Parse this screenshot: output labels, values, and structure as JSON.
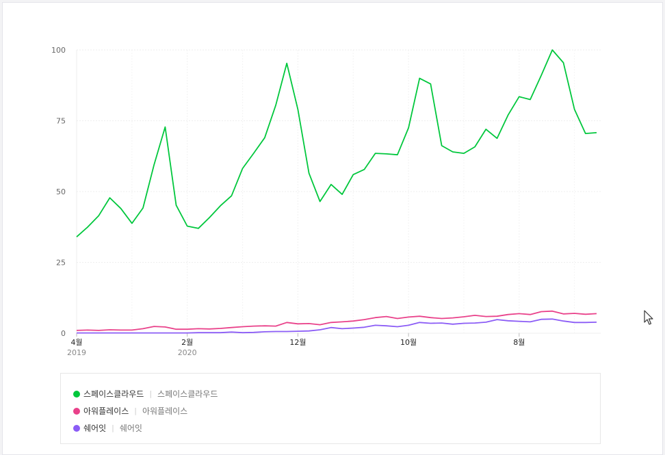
{
  "chart_data": {
    "type": "line",
    "title": "",
    "xlabel": "",
    "ylabel": "",
    "ylim": [
      0,
      100
    ],
    "yticks": [
      0,
      25,
      50,
      75,
      100
    ],
    "ytick_labels": [
      "0",
      "25",
      "50",
      "75",
      "100"
    ],
    "grid": true,
    "legend_position": "bottom",
    "xticks": [
      {
        "index": 0,
        "label": "4월",
        "sub": "2019"
      },
      {
        "index": 10,
        "label": "2월",
        "sub": "2020"
      },
      {
        "index": 20,
        "label": "12월",
        "sub": ""
      },
      {
        "index": 30,
        "label": "10월",
        "sub": ""
      },
      {
        "index": 40,
        "label": "8월",
        "sub": ""
      }
    ],
    "series": [
      {
        "name": "스페이스클라우드",
        "alias": "스페이스클라우드",
        "color": "#00c73c",
        "values": [
          34,
          37.5,
          41.5,
          47.8,
          44,
          38.8,
          44.2,
          59.5,
          72.8,
          45.2,
          37.8,
          37,
          40.8,
          45,
          48.5,
          58.2,
          63.5,
          69,
          80.5,
          95.3,
          79,
          56.5,
          46.5,
          52.5,
          49,
          56,
          57.8,
          63.5,
          63.3,
          63,
          72.5,
          90,
          88,
          66.2,
          64,
          63.5,
          65.8,
          72,
          68.8,
          77,
          83.5,
          82.5,
          91,
          100,
          95.5,
          79,
          70.5,
          70.8
        ]
      },
      {
        "name": "아워플레이스",
        "alias": "아워플레이스",
        "color": "#e9418a",
        "values": [
          1,
          1.1,
          1,
          1.2,
          1.1,
          1.1,
          1.6,
          2.4,
          2.2,
          1.4,
          1.4,
          1.6,
          1.5,
          1.7,
          2,
          2.3,
          2.5,
          2.6,
          2.5,
          3.8,
          3.3,
          3.4,
          3,
          3.8,
          4,
          4.3,
          4.8,
          5.5,
          5.9,
          5.2,
          5.7,
          6,
          5.5,
          5.2,
          5.4,
          5.8,
          6.3,
          5.9,
          6,
          6.6,
          6.9,
          6.6,
          7.6,
          7.8,
          6.8,
          7,
          6.7,
          6.9
        ]
      },
      {
        "name": "쉐어잇",
        "alias": "쉐어잇",
        "color": "#8b5cf6",
        "values": [
          0.1,
          0.1,
          0.1,
          0.1,
          0.1,
          0.1,
          0.1,
          0.1,
          0.1,
          0.1,
          0.1,
          0.2,
          0.2,
          0.2,
          0.4,
          0.2,
          0.3,
          0.5,
          0.6,
          0.6,
          0.7,
          0.8,
          1.2,
          2,
          1.6,
          1.8,
          2.1,
          2.8,
          2.6,
          2.3,
          2.8,
          3.8,
          3.5,
          3.6,
          3.2,
          3.5,
          3.6,
          3.9,
          4.8,
          4.4,
          4.2,
          4,
          4.9,
          5,
          4.3,
          3.8,
          3.8,
          3.9
        ]
      }
    ]
  }
}
